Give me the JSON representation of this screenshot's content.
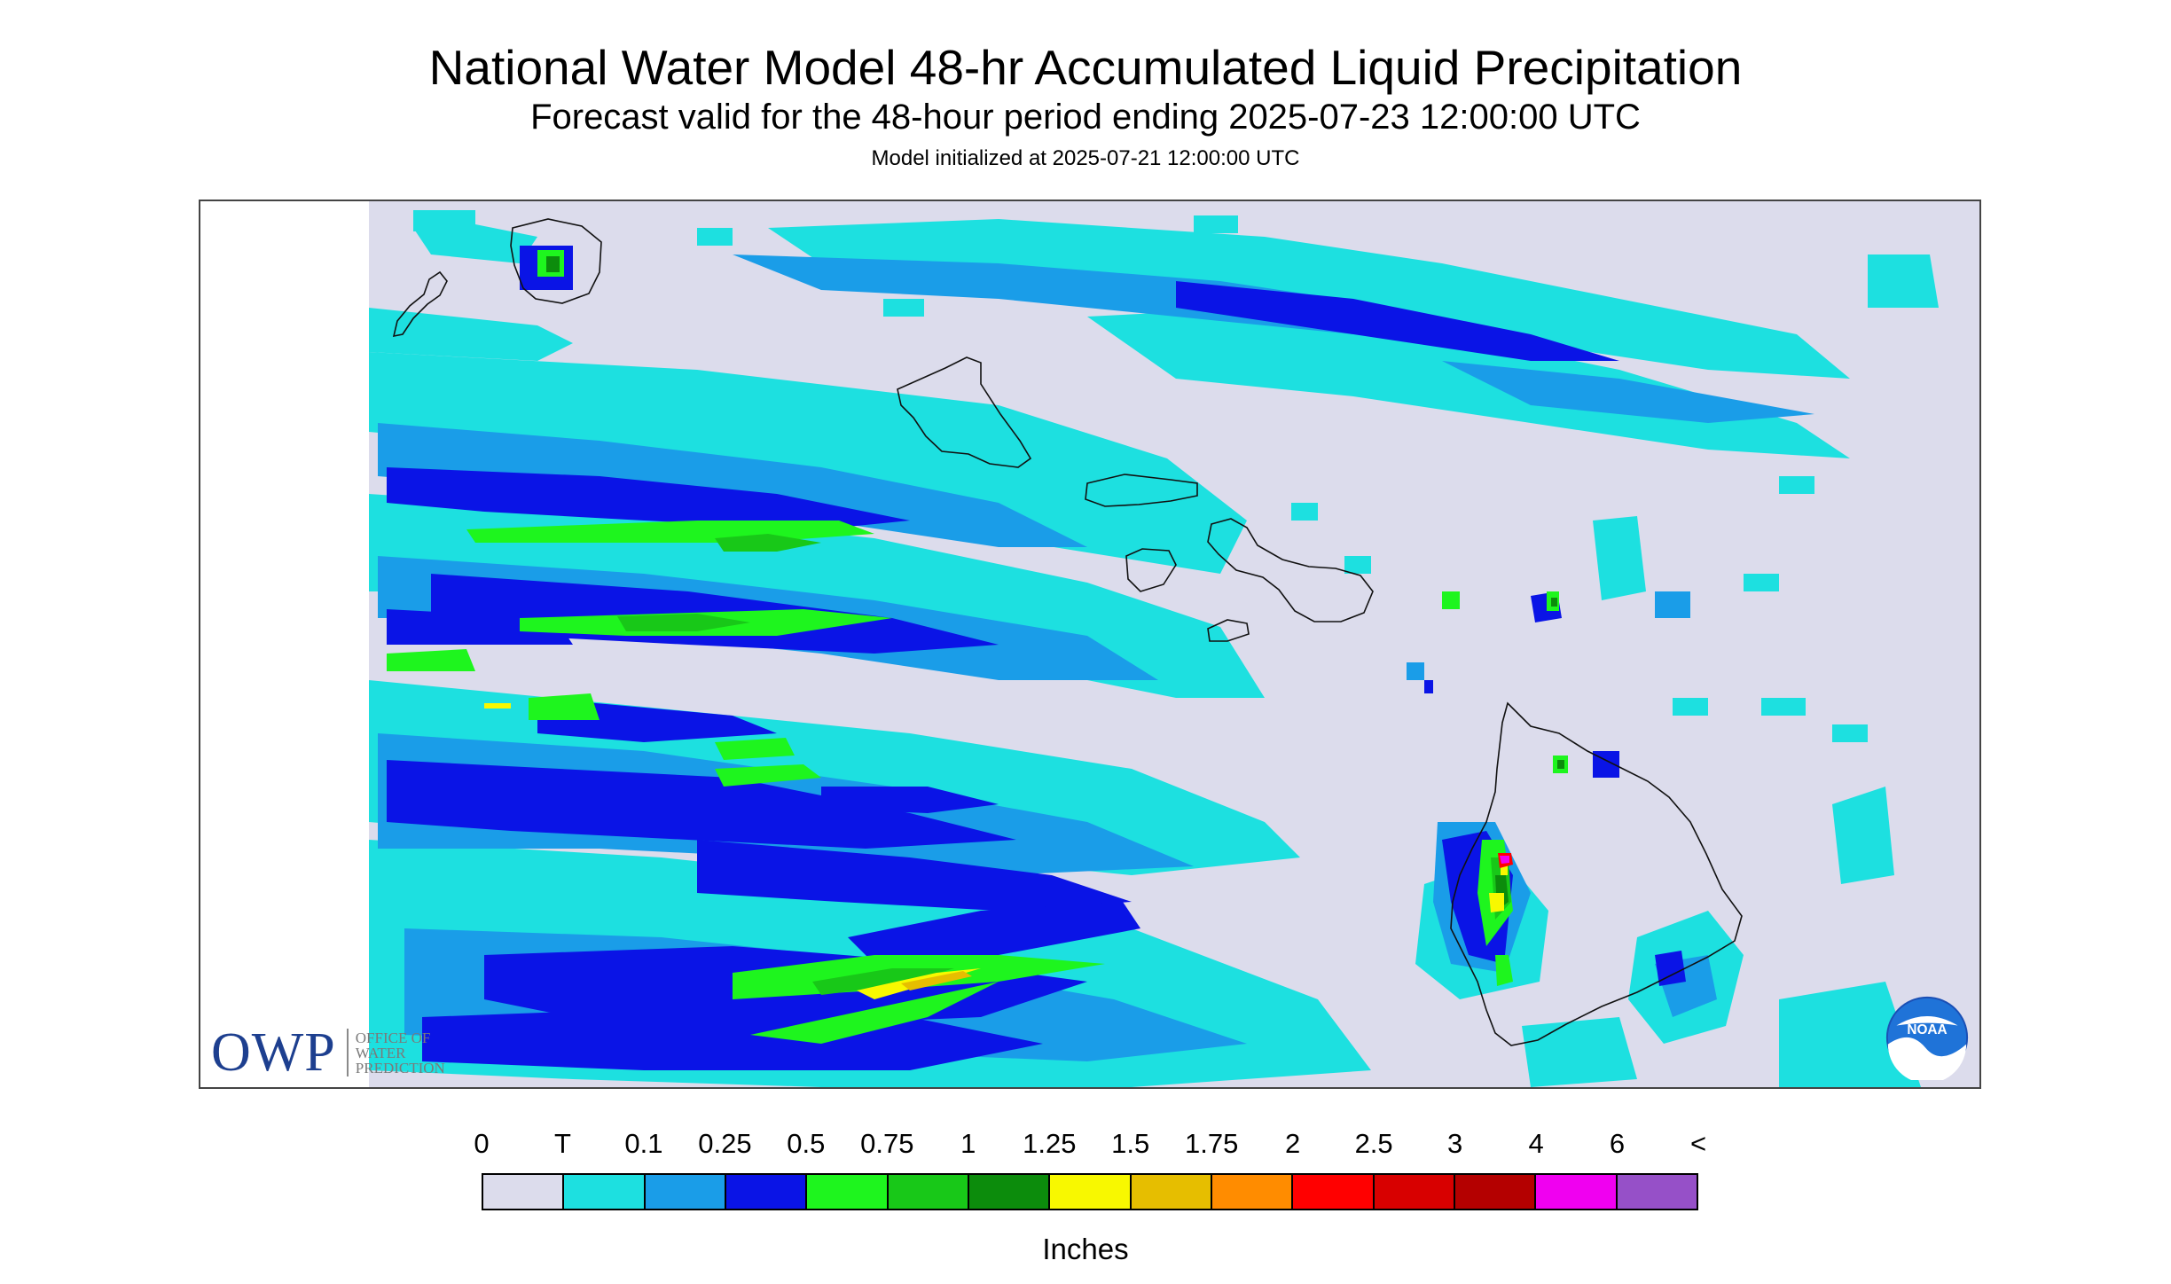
{
  "header": {
    "title": "National Water Model 48-hr Accumulated Liquid Precipitation",
    "subtitle": "Forecast valid for the 48-hour period ending 2025-07-23 12:00:00 UTC",
    "init_line": "Model initialized at 2025-07-21 12:00:00 UTC"
  },
  "logos": {
    "owp_mark": "OWP",
    "owp_words": [
      "OFFICE OF",
      "WATER",
      "PREDICTION"
    ],
    "noaa_text": "NOAA"
  },
  "map": {
    "background_color": "#dcdcec",
    "coastline_color": "#111111"
  },
  "legend": {
    "units": "Inches",
    "labels": [
      "0",
      "T",
      "0.1",
      "0.25",
      "0.5",
      "0.75",
      "1",
      "1.25",
      "1.5",
      "1.75",
      "2",
      "2.5",
      "3",
      "4",
      "6",
      "<"
    ],
    "colors": [
      "#dcdcec",
      "#1de0e0",
      "#1a9de8",
      "#0a14e6",
      "#1ef51e",
      "#18c818",
      "#0c8c0c",
      "#f8f800",
      "#e6be00",
      "#ff8c00",
      "#ff0000",
      "#d80000",
      "#b40000",
      "#f000f0",
      "#9650c8"
    ]
  }
}
